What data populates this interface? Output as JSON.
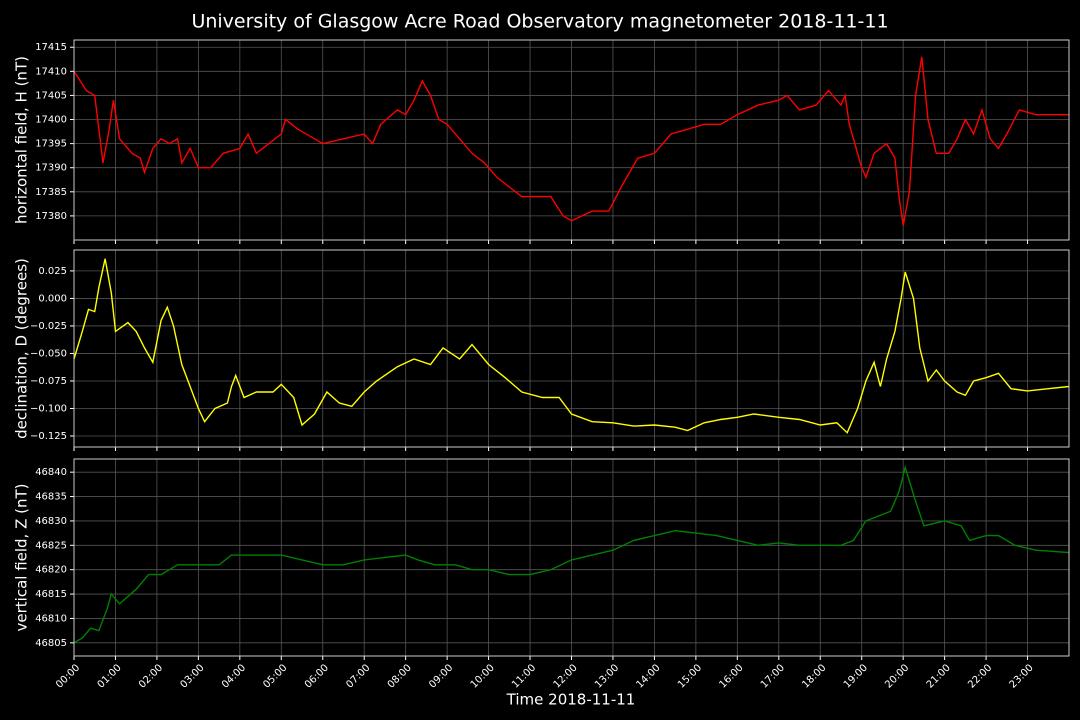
{
  "title": "University of Glasgow Acre Road Observatory magnetometer 2018-11-11",
  "xlabel": "Time 2018-11-11",
  "xlim": [
    0,
    24
  ],
  "xticks": [
    {
      "value": 0,
      "label": "00:00"
    },
    {
      "value": 1,
      "label": "01:00"
    },
    {
      "value": 2,
      "label": "02:00"
    },
    {
      "value": 3,
      "label": "03:00"
    },
    {
      "value": 4,
      "label": "04:00"
    },
    {
      "value": 5,
      "label": "05:00"
    },
    {
      "value": 6,
      "label": "06:00"
    },
    {
      "value": 7,
      "label": "07:00"
    },
    {
      "value": 8,
      "label": "08:00"
    },
    {
      "value": 9,
      "label": "09:00"
    },
    {
      "value": 10,
      "label": "10:00"
    },
    {
      "value": 11,
      "label": "11:00"
    },
    {
      "value": 12,
      "label": "12:00"
    },
    {
      "value": 13,
      "label": "13:00"
    },
    {
      "value": 14,
      "label": "14:00"
    },
    {
      "value": 15,
      "label": "15:00"
    },
    {
      "value": 16,
      "label": "16:00"
    },
    {
      "value": 17,
      "label": "17:00"
    },
    {
      "value": 18,
      "label": "18:00"
    },
    {
      "value": 19,
      "label": "19:00"
    },
    {
      "value": 20,
      "label": "20:00"
    },
    {
      "value": 21,
      "label": "21:00"
    },
    {
      "value": 22,
      "label": "22:00"
    },
    {
      "value": 23,
      "label": "23:00"
    }
  ],
  "grid": true,
  "chart_data": [
    {
      "type": "line",
      "ylabel": "horizontal field, H (nT)",
      "color": "#ff0000",
      "ylim": [
        17375,
        17416.5
      ],
      "yticks": [
        17380,
        17385,
        17390,
        17395,
        17400,
        17405,
        17410,
        17415
      ],
      "x": [
        0,
        0.3,
        0.5,
        0.6,
        0.7,
        0.85,
        0.95,
        1.1,
        1.4,
        1.6,
        1.7,
        1.9,
        2.1,
        2.3,
        2.5,
        2.6,
        2.8,
        3.0,
        3.3,
        3.6,
        4.0,
        4.2,
        4.4,
        4.7,
        5.0,
        5.1,
        5.4,
        5.8,
        6.0,
        6.5,
        7.0,
        7.2,
        7.4,
        7.8,
        8.0,
        8.2,
        8.4,
        8.6,
        8.8,
        9.0,
        9.3,
        9.6,
        9.9,
        10.2,
        10.5,
        10.8,
        11.2,
        11.5,
        11.8,
        12.0,
        12.5,
        12.9,
        13.2,
        13.6,
        14.0,
        14.4,
        14.8,
        15.2,
        15.6,
        16.0,
        16.5,
        17.0,
        17.2,
        17.5,
        17.9,
        18.2,
        18.5,
        18.6,
        18.7,
        19.0,
        19.1,
        19.3,
        19.6,
        19.8,
        19.9,
        20.0,
        20.15,
        20.3,
        20.45,
        20.6,
        20.8,
        21.1,
        21.3,
        21.5,
        21.7,
        21.9,
        22.1,
        22.3,
        22.5,
        22.8,
        23.2,
        23.6,
        24.0
      ],
      "values": [
        17410,
        17406,
        17405,
        17398,
        17391,
        17398,
        17404,
        17396,
        17393,
        17392,
        17389,
        17394,
        17396,
        17395,
        17396,
        17391,
        17394,
        17390,
        17390,
        17393,
        17394,
        17397,
        17393,
        17395,
        17397,
        17400,
        17398,
        17396,
        17395,
        17396,
        17397,
        17395,
        17399,
        17402,
        17401,
        17404,
        17408,
        17405,
        17400,
        17399,
        17396,
        17393,
        17391,
        17388,
        17386,
        17384,
        17384,
        17384,
        17380,
        17379,
        17381,
        17381,
        17386,
        17392,
        17393,
        17397,
        17398,
        17399,
        17399,
        17401,
        17403,
        17404,
        17405,
        17402,
        17403,
        17406,
        17403,
        17405,
        17399,
        17390,
        17388,
        17393,
        17395,
        17392,
        17384,
        17378,
        17385,
        17405,
        17413,
        17400,
        17393,
        17393,
        17396,
        17400,
        17397,
        17402,
        17396,
        17394,
        17397,
        17402,
        17401,
        17401,
        17401
      ]
    },
    {
      "type": "line",
      "ylabel": "declination, D (degrees)",
      "color": "#ffff00",
      "ylim": [
        -0.135,
        0.044
      ],
      "yticks": [
        {
          "value": -0.125,
          "label": "−0.125"
        },
        {
          "value": -0.1,
          "label": "−0.100"
        },
        {
          "value": -0.075,
          "label": "−0.075"
        },
        {
          "value": -0.05,
          "label": "−0.050"
        },
        {
          "value": -0.025,
          "label": "−0.025"
        },
        {
          "value": 0,
          "label": "0.000"
        },
        {
          "value": 0.025,
          "label": "0.025"
        }
      ],
      "x": [
        0,
        0.2,
        0.35,
        0.5,
        0.6,
        0.75,
        0.9,
        1.0,
        1.3,
        1.5,
        1.7,
        1.9,
        2.1,
        2.25,
        2.4,
        2.6,
        2.8,
        3.0,
        3.15,
        3.4,
        3.7,
        3.8,
        3.9,
        4.1,
        4.4,
        4.8,
        5.0,
        5.3,
        5.5,
        5.8,
        6.1,
        6.4,
        6.7,
        7.0,
        7.3,
        7.8,
        8.2,
        8.6,
        8.9,
        9.3,
        9.6,
        10.0,
        10.4,
        10.8,
        11.3,
        11.7,
        12.0,
        12.5,
        13.0,
        13.5,
        14.0,
        14.5,
        14.8,
        15.2,
        15.6,
        16.0,
        16.4,
        17.0,
        17.5,
        18.0,
        18.4,
        18.65,
        18.9,
        19.1,
        19.3,
        19.45,
        19.6,
        19.8,
        19.95,
        20.05,
        20.25,
        20.4,
        20.6,
        20.8,
        21.0,
        21.3,
        21.5,
        21.7,
        22.0,
        22.3,
        22.6,
        23.0,
        23.5,
        24.0
      ],
      "values": [
        -0.055,
        -0.03,
        -0.01,
        -0.012,
        0.01,
        0.036,
        0.005,
        -0.03,
        -0.022,
        -0.03,
        -0.045,
        -0.058,
        -0.02,
        -0.008,
        -0.025,
        -0.06,
        -0.08,
        -0.1,
        -0.112,
        -0.1,
        -0.095,
        -0.08,
        -0.07,
        -0.09,
        -0.085,
        -0.085,
        -0.078,
        -0.09,
        -0.115,
        -0.105,
        -0.085,
        -0.095,
        -0.098,
        -0.085,
        -0.075,
        -0.062,
        -0.055,
        -0.06,
        -0.045,
        -0.055,
        -0.042,
        -0.06,
        -0.072,
        -0.085,
        -0.09,
        -0.09,
        -0.105,
        -0.112,
        -0.113,
        -0.116,
        -0.115,
        -0.117,
        -0.12,
        -0.113,
        -0.11,
        -0.108,
        -0.105,
        -0.108,
        -0.11,
        -0.115,
        -0.113,
        -0.122,
        -0.1,
        -0.075,
        -0.058,
        -0.08,
        -0.055,
        -0.03,
        0.0,
        0.024,
        0.0,
        -0.045,
        -0.075,
        -0.065,
        -0.075,
        -0.085,
        -0.088,
        -0.075,
        -0.072,
        -0.068,
        -0.082,
        -0.084,
        -0.082,
        -0.08
      ]
    },
    {
      "type": "line",
      "ylabel": "vertical field, Z (nT)",
      "color": "#008000",
      "ylim": [
        46802.3,
        46842.7
      ],
      "yticks": [
        46805,
        46810,
        46815,
        46820,
        46825,
        46830,
        46835,
        46840
      ],
      "x": [
        0,
        0.2,
        0.4,
        0.6,
        0.8,
        0.9,
        1.1,
        1.5,
        1.8,
        2.1,
        2.5,
        3.0,
        3.5,
        3.8,
        4.2,
        4.6,
        5.0,
        5.5,
        6.0,
        6.5,
        7.0,
        7.5,
        8.0,
        8.3,
        8.7,
        9.2,
        9.6,
        10.0,
        10.5,
        11.0,
        11.5,
        12.0,
        12.5,
        13.0,
        13.5,
        14.0,
        14.5,
        15.0,
        15.5,
        16.0,
        16.5,
        17.0,
        17.5,
        18.0,
        18.5,
        18.8,
        19.1,
        19.4,
        19.7,
        19.9,
        20.05,
        20.3,
        20.5,
        21.0,
        21.4,
        21.6,
        22.0,
        22.3,
        22.7,
        23.2,
        24.0
      ],
      "values": [
        46805,
        46806,
        46808,
        46807.5,
        46812,
        46815,
        46813,
        46816,
        46819,
        46819,
        46821,
        46821,
        46821,
        46823,
        46823,
        46823,
        46823,
        46822,
        46821,
        46821,
        46822,
        46822.5,
        46823,
        46822,
        46821,
        46821,
        46820,
        46820,
        46819,
        46819,
        46820,
        46822,
        46823,
        46824,
        46826,
        46827,
        46828,
        46827.5,
        46827,
        46826,
        46825,
        46825.5,
        46825,
        46825,
        46825,
        46826,
        46830,
        46831,
        46832,
        46836,
        46841,
        46834,
        46829,
        46830,
        46829,
        46826,
        46827,
        46827,
        46825,
        46824,
        46823.5
      ]
    }
  ]
}
